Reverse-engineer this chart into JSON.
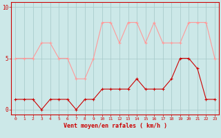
{
  "hours": [
    0,
    1,
    2,
    3,
    4,
    5,
    6,
    7,
    8,
    9,
    10,
    11,
    12,
    13,
    14,
    15,
    16,
    17,
    18,
    19,
    20,
    21,
    22,
    23
  ],
  "wind_avg": [
    1,
    1,
    1,
    0,
    1,
    1,
    1,
    0,
    1,
    1,
    2,
    2,
    2,
    2,
    3,
    2,
    2,
    2,
    3,
    5,
    5,
    4,
    1,
    1
  ],
  "wind_gust": [
    5,
    5,
    5,
    6.5,
    6.5,
    5,
    5,
    3,
    3,
    5,
    8.5,
    8.5,
    6.5,
    8.5,
    8.5,
    6.5,
    8.5,
    6.5,
    6.5,
    6.5,
    8.5,
    8.5,
    8.5,
    5
  ],
  "bg_color": "#cce8e8",
  "grid_color": "#aacccc",
  "line_avg_color": "#cc0000",
  "line_gust_color": "#ff9999",
  "xlabel": "Vent moyen/en rafales ( km/h )",
  "ylim": [
    -0.5,
    10.5
  ],
  "yticks": [
    0,
    5,
    10
  ],
  "xlim": [
    -0.5,
    23.5
  ],
  "xlabel_color": "#cc0000",
  "tick_color": "#cc0000",
  "spine_color": "#cc0000"
}
